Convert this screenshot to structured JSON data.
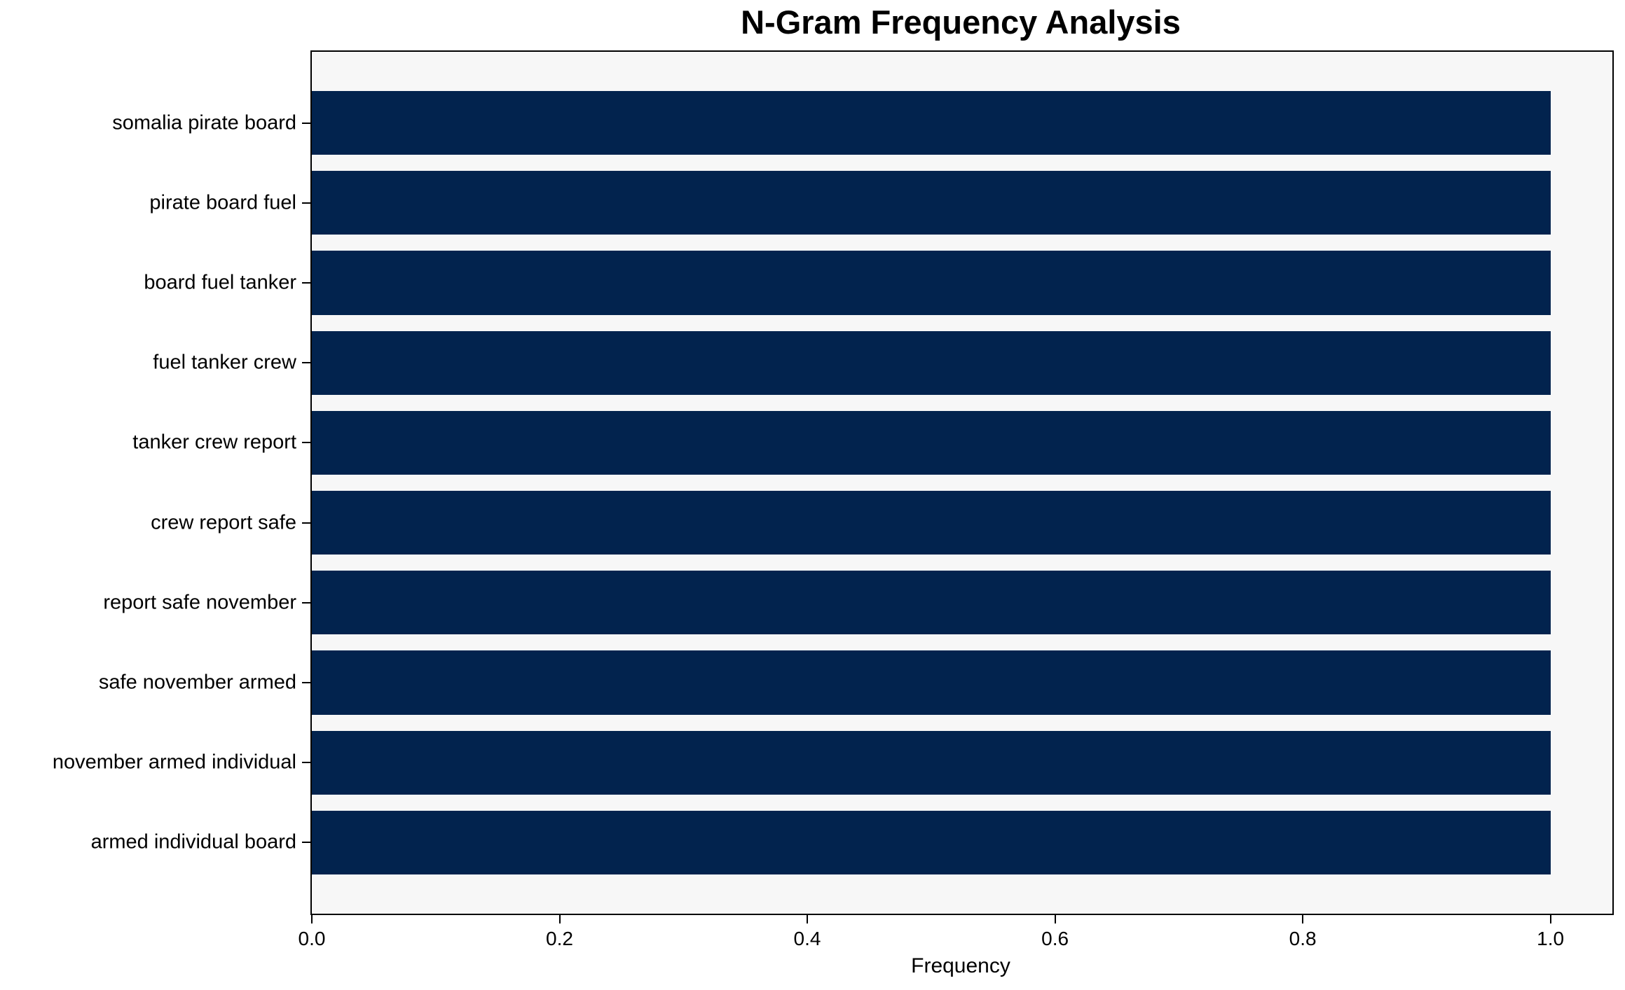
{
  "chart_data": {
    "type": "bar",
    "orientation": "horizontal",
    "title": "N-Gram Frequency Analysis",
    "xlabel": "Frequency",
    "ylabel": "",
    "categories": [
      "somalia pirate board",
      "pirate board fuel",
      "board fuel tanker",
      "fuel tanker crew",
      "tanker crew report",
      "crew report safe",
      "report safe november",
      "safe november armed",
      "november armed individual",
      "armed individual board"
    ],
    "values": [
      1.0,
      1.0,
      1.0,
      1.0,
      1.0,
      1.0,
      1.0,
      1.0,
      1.0,
      1.0
    ],
    "xlim": [
      0,
      1.05
    ],
    "xticks": [
      0.0,
      0.2,
      0.4,
      0.6,
      0.8,
      1.0
    ],
    "xtick_labels": [
      "0.0",
      "0.2",
      "0.4",
      "0.6",
      "0.8",
      "1.0"
    ],
    "bar_height_fraction": 0.8,
    "grid": false,
    "legend": null,
    "colors": {
      "bar": "#02234e",
      "plot_background": "#f7f7f7",
      "figure_background": "#ffffff",
      "spine": "#000000",
      "text": "#000000"
    }
  }
}
